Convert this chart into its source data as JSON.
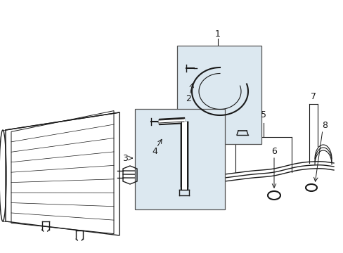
{
  "background_color": "#ffffff",
  "line_color": "#1a1a1a",
  "box_fill_color": "#dce8f0",
  "box_edge_color": "#555555",
  "fig_width": 4.89,
  "fig_height": 3.6,
  "dpi": 100
}
